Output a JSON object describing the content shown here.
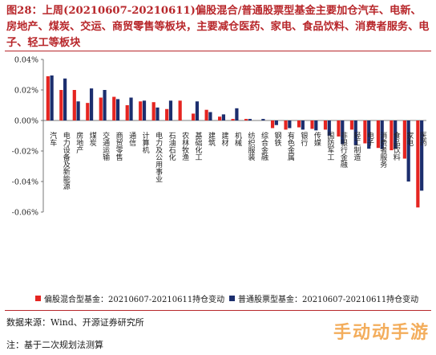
{
  "figure": {
    "title": "图28：上周(20210607-20210611)偏股混合/普通股票型基金主要加仓汽车、电新、房地产、煤炭、交运、商贸零售等板块，主要减仓医药、家电、食品饮料、消费者服务、电子、轻工等板块",
    "source": "数据来源：Wind、开源证券研究所",
    "footnote": "注：基于二次规划法测算",
    "watermark": "手动动手游"
  },
  "colors": {
    "series1": "#e52521",
    "series2": "#1c2e6e",
    "title": "#b8272b"
  },
  "chart_data": {
    "type": "bar",
    "ylim": [
      -0.06,
      0.04
    ],
    "y_ticks": [
      0.04,
      0.02,
      0.0,
      -0.02,
      -0.04,
      -0.06
    ],
    "y_tick_labels": [
      "0.04%",
      "0.02%",
      "0.00%",
      "-0.02%",
      "-0.04%",
      "-0.06%"
    ],
    "grid": false,
    "legend_position": "bottom",
    "categories": [
      "汽车",
      "电力设备及新能源",
      "房地产",
      "煤炭",
      "交通运输",
      "商贸零售",
      "通信",
      "计算机",
      "电力及公用事业",
      "石油石化",
      "农林牧渔",
      "基础化工",
      "建筑",
      "建材",
      "机械",
      "纺织服装",
      "综合金融",
      "钢铁",
      "有色金属",
      "银行",
      "传媒",
      "国防军工",
      "非银行金融",
      "轻工制造",
      "电子",
      "消费者服务",
      "食品饮料",
      "家电",
      "医药"
    ],
    "series": [
      {
        "name": "偏股混合型基金：20210607-20210611持仓变动",
        "values": [
          0.029,
          0.02,
          0.02,
          0.0115,
          0.015,
          0.0155,
          0.01,
          0.0125,
          0.012,
          0.0075,
          0.013,
          0.0045,
          0.007,
          0.0025,
          0.001,
          0.001,
          0.0,
          -0.005,
          -0.006,
          -0.0045,
          -0.0055,
          -0.006,
          -0.0105,
          -0.006,
          -0.015,
          -0.018,
          -0.0195,
          -0.025,
          -0.057
        ]
      },
      {
        "name": "普通股票型基金：20210607-20210611持仓变动",
        "values": [
          0.0295,
          0.0275,
          0.0125,
          0.021,
          0.02,
          0.014,
          0.015,
          0.013,
          0.0085,
          0.013,
          0.0,
          0.0125,
          0.0055,
          0.004,
          0.008,
          0.001,
          0.001,
          -0.003,
          -0.005,
          -0.006,
          -0.0065,
          -0.01,
          -0.0155,
          -0.016,
          -0.0185,
          -0.0185,
          -0.0185,
          -0.04,
          -0.046
        ]
      }
    ]
  }
}
